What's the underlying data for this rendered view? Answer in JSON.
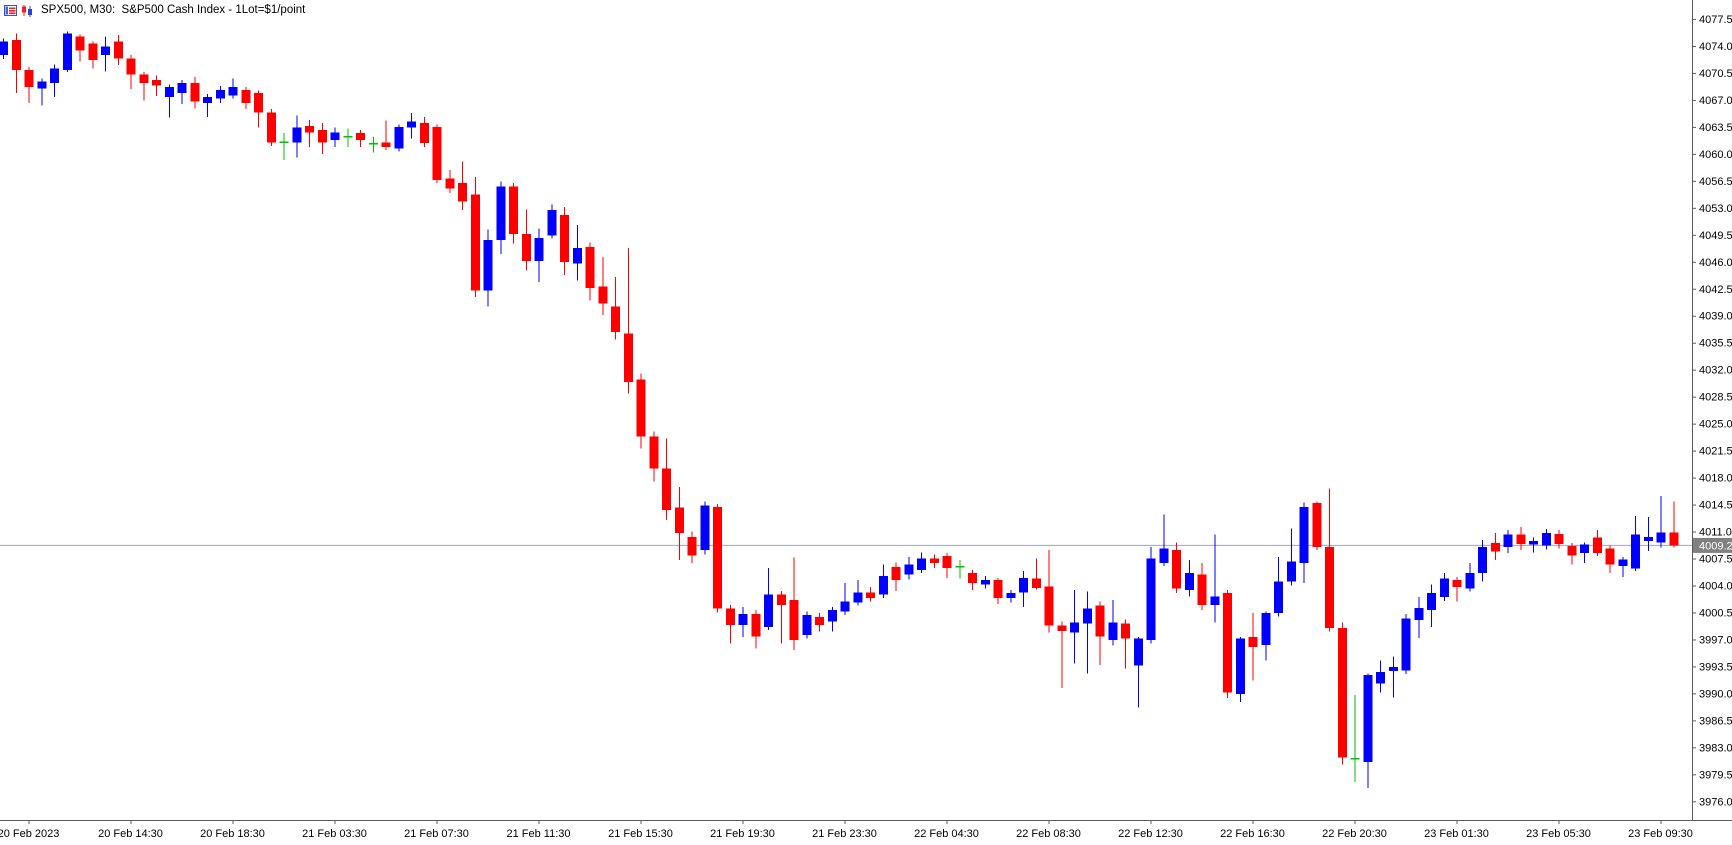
{
  "header": {
    "title": "SPX500, M30:  S&P500 Cash Index - 1Lot=$1/point",
    "icons": [
      "quotes-list-icon",
      "candlestick-chart-icon"
    ]
  },
  "chart_data": {
    "type": "candlestick",
    "title": "SPX500, M30: S&P500 Cash Index - 1Lot=$1/point",
    "symbol": "SPX500",
    "timeframe": "M30",
    "last_price": 4009.2,
    "last_price_label": "4009.2",
    "legend_position": "none",
    "grid": false,
    "y_axis": {
      "side": "right",
      "step": 3.5,
      "max": 4077.5,
      "min": 3976.0,
      "ticks": [
        "4077.5",
        "4074.0",
        "4070.5",
        "4067.0",
        "4063.5",
        "4060.0",
        "4056.5",
        "4053.0",
        "4049.5",
        "4046.0",
        "4042.5",
        "4039.0",
        "4035.5",
        "4032.0",
        "4028.5",
        "4025.0",
        "4021.5",
        "4018.0",
        "4014.5",
        "4011.0",
        "4007.5",
        "4004.0",
        "4000.5",
        "3997.0",
        "3993.5",
        "3990.0",
        "3986.5",
        "3983.0",
        "3979.5",
        "3976.0"
      ]
    },
    "x_axis": {
      "ticks": [
        {
          "bar": 2,
          "label": "20 Feb 2023"
        },
        {
          "bar": 10,
          "label": "20 Feb 14:30"
        },
        {
          "bar": 18,
          "label": "20 Feb 18:30"
        },
        {
          "bar": 26,
          "label": "21 Feb 03:30"
        },
        {
          "bar": 34,
          "label": "21 Feb 07:30"
        },
        {
          "bar": 42,
          "label": "21 Feb 11:30"
        },
        {
          "bar": 50,
          "label": "21 Feb 15:30"
        },
        {
          "bar": 58,
          "label": "21 Feb 19:30"
        },
        {
          "bar": 66,
          "label": "21 Feb 23:30"
        },
        {
          "bar": 74,
          "label": "22 Feb 04:30"
        },
        {
          "bar": 82,
          "label": "22 Feb 08:30"
        },
        {
          "bar": 90,
          "label": "22 Feb 12:30"
        },
        {
          "bar": 98,
          "label": "22 Feb 16:30"
        },
        {
          "bar": 106,
          "label": "22 Feb 20:30"
        },
        {
          "bar": 114,
          "label": "23 Feb 01:30"
        },
        {
          "bar": 122,
          "label": "23 Feb 05:30"
        },
        {
          "bar": 130,
          "label": "23 Feb 09:30"
        }
      ]
    },
    "colors": {
      "bull": "#0000FF",
      "bear": "#FF0000",
      "doji": "#00C000",
      "background": "#FFFFFF",
      "axis_line": "#5A5A5A",
      "text": "#000000",
      "last_price_line": "#A3A3B8",
      "badge_bg": "#808080",
      "badge_text": "#FFFFFF"
    },
    "candles": [
      [
        4072.8,
        4075.0,
        4072.3,
        4074.6
      ],
      [
        4074.8,
        4075.6,
        4067.9,
        4070.9
      ],
      [
        4070.9,
        4071.3,
        4066.6,
        4068.7
      ],
      [
        4068.5,
        4069.8,
        4066.3,
        4069.4
      ],
      [
        4069.2,
        4071.6,
        4067.4,
        4071.1
      ],
      [
        4070.9,
        4075.9,
        4070.6,
        4075.6
      ],
      [
        4075.2,
        4075.5,
        4072.0,
        4073.4
      ],
      [
        4074.3,
        4074.6,
        4071.1,
        4072.2
      ],
      [
        4072.8,
        4075.2,
        4070.7,
        4073.9
      ],
      [
        4074.6,
        4075.4,
        4071.5,
        4072.4
      ],
      [
        4072.4,
        4072.8,
        4068.4,
        4070.3
      ],
      [
        4070.3,
        4070.6,
        4066.9,
        4069.2
      ],
      [
        4069.6,
        4070.2,
        4067.5,
        4068.9
      ],
      [
        4067.4,
        4069.0,
        4064.7,
        4068.7
      ],
      [
        4067.9,
        4069.6,
        4066.5,
        4069.2
      ],
      [
        4069.2,
        4070.0,
        4065.9,
        4066.8
      ],
      [
        4066.6,
        4067.8,
        4064.8,
        4067.4
      ],
      [
        4067.2,
        4068.8,
        4066.6,
        4068.3
      ],
      [
        4067.6,
        4069.8,
        4067.2,
        4068.7
      ],
      [
        4068.3,
        4068.7,
        4065.8,
        4066.6
      ],
      [
        4067.9,
        4068.2,
        4063.4,
        4065.4
      ],
      [
        4065.4,
        4065.8,
        4061.0,
        4061.5
      ],
      [
        4061.5,
        4062.7,
        4059.2,
        4061.6
      ],
      [
        4061.5,
        4065.0,
        4059.5,
        4063.4
      ],
      [
        4063.6,
        4064.4,
        4060.9,
        4062.8
      ],
      [
        4063.1,
        4064.0,
        4060.0,
        4061.5
      ],
      [
        4061.8,
        4063.4,
        4060.9,
        4062.8
      ],
      [
        4062.3,
        4063.3,
        4060.9,
        4062.2
      ],
      [
        4062.7,
        4063.1,
        4060.9,
        4061.8
      ],
      [
        4061.4,
        4062.2,
        4060.2,
        4061.3
      ],
      [
        4061.5,
        4064.3,
        4060.5,
        4060.9
      ],
      [
        4060.7,
        4063.8,
        4060.3,
        4063.5
      ],
      [
        4063.4,
        4065.3,
        4062.0,
        4064.2
      ],
      [
        4064.0,
        4064.8,
        4060.9,
        4061.4
      ],
      [
        4063.5,
        4063.8,
        4056.2,
        4056.6
      ],
      [
        4056.8,
        4057.9,
        4054.9,
        4055.5
      ],
      [
        4056.2,
        4059.0,
        4052.7,
        4053.8
      ],
      [
        4054.7,
        4057.0,
        4041.4,
        4042.3
      ],
      [
        4042.3,
        4050.2,
        4040.2,
        4048.8
      ],
      [
        4048.8,
        4056.4,
        4047.0,
        4055.8
      ],
      [
        4055.8,
        4056.2,
        4048.4,
        4049.6
      ],
      [
        4049.6,
        4052.8,
        4044.9,
        4046.1
      ],
      [
        4046.1,
        4050.3,
        4043.4,
        4049.1
      ],
      [
        4049.4,
        4053.4,
        4049.0,
        4052.7
      ],
      [
        4052.1,
        4053.1,
        4044.3,
        4046.0
      ],
      [
        4045.8,
        4050.8,
        4043.6,
        4047.8
      ],
      [
        4047.9,
        4048.5,
        4041.0,
        4042.6
      ],
      [
        4042.8,
        4046.6,
        4039.1,
        4040.6
      ],
      [
        4040.2,
        4044.0,
        4035.9,
        4036.9
      ],
      [
        4036.7,
        4047.8,
        4028.9,
        4030.4
      ],
      [
        4030.7,
        4031.5,
        4021.8,
        4023.3
      ],
      [
        4023.3,
        4024.0,
        4017.5,
        4019.2
      ],
      [
        4019.2,
        4023.1,
        4012.5,
        4013.8
      ],
      [
        4014.1,
        4016.8,
        4007.3,
        4010.8
      ],
      [
        4010.3,
        4011.0,
        4006.9,
        4007.9
      ],
      [
        4008.6,
        4014.9,
        4008.0,
        4014.4
      ],
      [
        4014.2,
        4014.6,
        4000.5,
        4001.0
      ],
      [
        4001.0,
        4001.5,
        3996.5,
        3998.9
      ],
      [
        3998.9,
        4001.2,
        3997.3,
        4000.3
      ],
      [
        4000.3,
        4000.8,
        3995.8,
        3997.4
      ],
      [
        3998.6,
        4006.3,
        3998.2,
        4002.8
      ],
      [
        4002.8,
        4003.3,
        3996.5,
        4001.5
      ],
      [
        4002.1,
        4007.6,
        3995.6,
        3996.9
      ],
      [
        3997.6,
        4000.6,
        3997.1,
        4000.2
      ],
      [
        3999.9,
        4000.4,
        3998.0,
        3998.9
      ],
      [
        3999.3,
        4001.2,
        3998.0,
        4000.8
      ],
      [
        4000.6,
        4004.3,
        4000.2,
        4001.9
      ],
      [
        4001.8,
        4004.7,
        4001.4,
        4003.1
      ],
      [
        4003.1,
        4003.8,
        4001.9,
        4002.4
      ],
      [
        4002.8,
        4006.7,
        4002.4,
        4005.2
      ],
      [
        4006.4,
        4007.0,
        4003.3,
        4004.7
      ],
      [
        4005.4,
        4007.7,
        4004.8,
        4006.7
      ],
      [
        4006.0,
        4008.3,
        4005.6,
        4007.5
      ],
      [
        4007.5,
        4008.0,
        4006.3,
        4006.9
      ],
      [
        4007.8,
        4008.2,
        4005.0,
        4006.3
      ],
      [
        4006.5,
        4007.3,
        4004.9,
        4006.4
      ],
      [
        4005.6,
        4006.0,
        4003.4,
        4004.3
      ],
      [
        4004.1,
        4005.2,
        4003.6,
        4004.7
      ],
      [
        4004.7,
        4005.0,
        4001.6,
        4002.4
      ],
      [
        4002.4,
        4003.4,
        4001.8,
        4003.0
      ],
      [
        4003.1,
        4005.9,
        4001.2,
        4005.0
      ],
      [
        4004.9,
        4007.5,
        4003.5,
        4003.7
      ],
      [
        4003.9,
        4008.6,
        3997.9,
        3998.8
      ],
      [
        3998.8,
        3999.3,
        3990.7,
        3998.1
      ],
      [
        3997.9,
        4003.4,
        3993.9,
        3999.2
      ],
      [
        3999.1,
        4003.2,
        3992.6,
        4001.0
      ],
      [
        4001.4,
        4001.9,
        3993.7,
        3997.4
      ],
      [
        3996.9,
        4002.1,
        3996.2,
        3999.2
      ],
      [
        3999.1,
        3999.6,
        3993.2,
        3997.1
      ],
      [
        3993.6,
        3997.3,
        3988.2,
        3997.1
      ],
      [
        3996.9,
        4009.0,
        3996.5,
        4007.5
      ],
      [
        4006.9,
        4013.2,
        4006.5,
        4008.8
      ],
      [
        4008.6,
        4009.6,
        4003.0,
        4003.6
      ],
      [
        4003.4,
        4007.3,
        4002.6,
        4005.6
      ],
      [
        4005.4,
        4006.9,
        4000.8,
        4001.5
      ],
      [
        4001.5,
        4010.6,
        3999.2,
        4002.6
      ],
      [
        4003.0,
        4003.4,
        3989.4,
        3990.1
      ],
      [
        3989.9,
        3997.3,
        3988.9,
        3997.1
      ],
      [
        3997.3,
        4000.4,
        3991.7,
        3996.0
      ],
      [
        3996.3,
        4000.6,
        3994.3,
        4000.4
      ],
      [
        4000.4,
        4007.7,
        4000.0,
        4004.5
      ],
      [
        4004.5,
        4011.4,
        4004.0,
        4007.1
      ],
      [
        4006.9,
        4014.8,
        4004.3,
        4014.2
      ],
      [
        4014.7,
        4014.9,
        4008.6,
        4009.0
      ],
      [
        4009.0,
        4016.6,
        3998.0,
        3998.5
      ],
      [
        3998.5,
        3999.2,
        3980.8,
        3981.7
      ],
      [
        3981.5,
        3989.8,
        3978.5,
        3981.6
      ],
      [
        3981.1,
        3992.6,
        3977.7,
        3992.4
      ],
      [
        3991.3,
        3994.3,
        3990.1,
        3992.8
      ],
      [
        3992.9,
        3994.8,
        3989.5,
        3993.4
      ],
      [
        3993.0,
        4000.3,
        3992.5,
        3999.7
      ],
      [
        3999.5,
        4002.5,
        3997.2,
        4001.1
      ],
      [
        4000.8,
        4004.1,
        3998.6,
        4003.0
      ],
      [
        4002.5,
        4005.6,
        4002.0,
        4004.9
      ],
      [
        4004.7,
        4005.1,
        4001.9,
        4003.8
      ],
      [
        4003.6,
        4006.9,
        4003.2,
        4005.6
      ],
      [
        4005.6,
        4009.9,
        4004.5,
        4009.0
      ],
      [
        4009.5,
        4010.8,
        4007.3,
        4008.4
      ],
      [
        4009.0,
        4011.2,
        4008.2,
        4010.6
      ],
      [
        4010.6,
        4011.6,
        4008.6,
        4009.4
      ],
      [
        4009.3,
        4010.2,
        4008.3,
        4009.8
      ],
      [
        4009.2,
        4011.3,
        4008.7,
        4010.8
      ],
      [
        4010.7,
        4011.2,
        4008.8,
        4009.4
      ],
      [
        4009.1,
        4009.5,
        4006.7,
        4007.9
      ],
      [
        4008.2,
        4009.6,
        4006.9,
        4009.3
      ],
      [
        4010.2,
        4011.2,
        4007.8,
        4008.2
      ],
      [
        4008.8,
        4009.2,
        4005.6,
        4006.7
      ],
      [
        4006.5,
        4007.7,
        4005.1,
        4007.4
      ],
      [
        4006.2,
        4013.0,
        4005.9,
        4010.6
      ],
      [
        4009.8,
        4012.9,
        4008.5,
        4010.3
      ],
      [
        4009.6,
        4015.6,
        4008.9,
        4010.9
      ],
      [
        4010.9,
        4014.9,
        4008.9,
        4009.2
      ]
    ]
  }
}
